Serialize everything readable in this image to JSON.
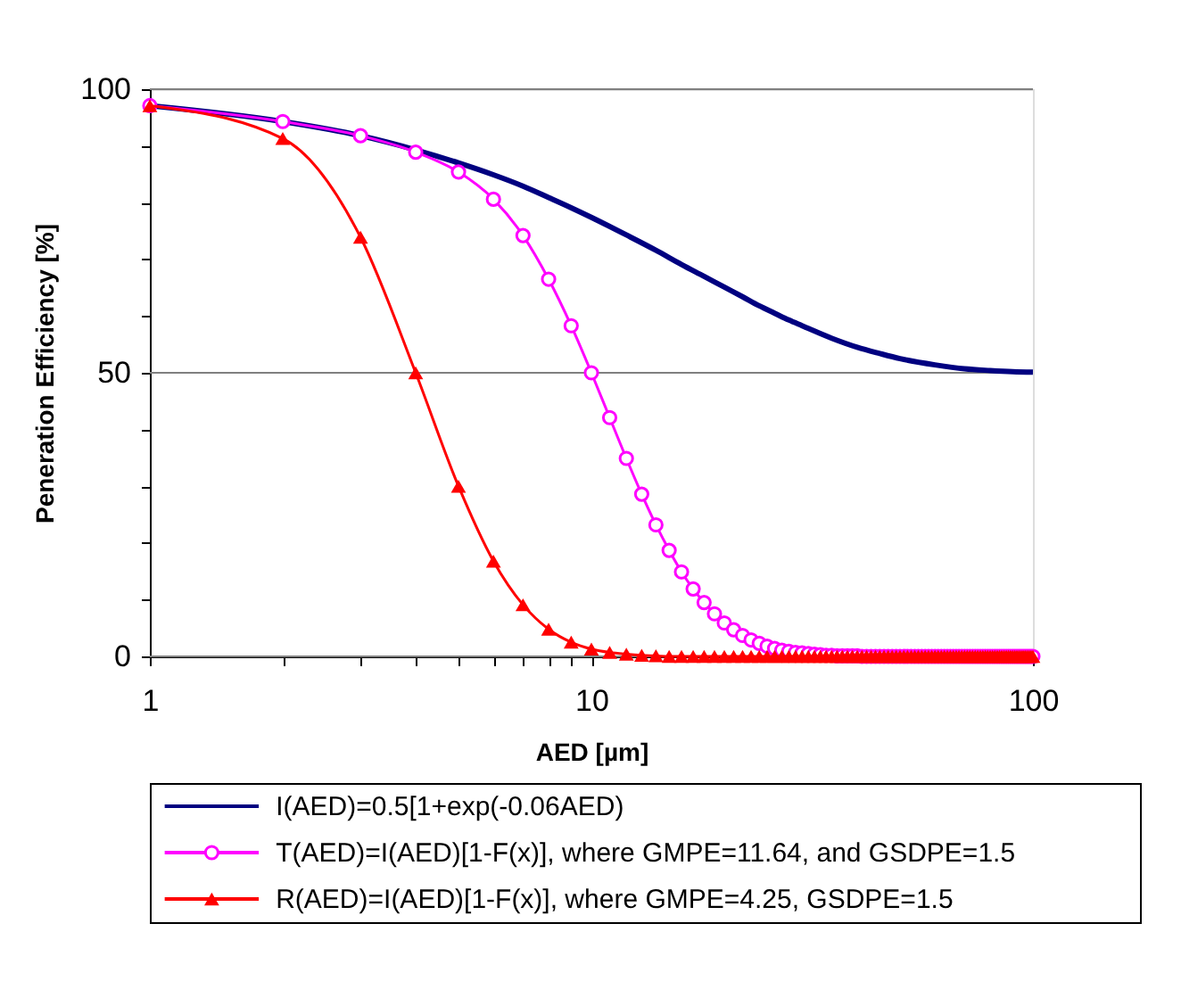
{
  "chart_data": {
    "type": "line",
    "xlabel": "AED [µm]",
    "ylabel": "Peneration Efficiency [%]",
    "log": "x",
    "grid": "y",
    "legend": "bottom",
    "xlim": [
      1,
      100
    ],
    "xticks": [
      1,
      {
        "value": 2,
        "label": null
      },
      {
        "value": 3,
        "label": null
      },
      {
        "value": 4,
        "label": null
      },
      {
        "value": 5,
        "label": null
      },
      {
        "value": 6,
        "label": null
      },
      {
        "value": 7,
        "label": null
      },
      {
        "value": 8,
        "label": null
      },
      {
        "value": 9,
        "label": null
      },
      10,
      100
    ],
    "ylim": [
      0,
      100
    ],
    "yticks": [
      0,
      {
        "value": 10,
        "label": null
      },
      {
        "value": 20,
        "label": null
      },
      {
        "value": 30,
        "label": null
      },
      {
        "value": 40,
        "label": null
      },
      50,
      {
        "value": 60,
        "label": null
      },
      {
        "value": 70,
        "label": null
      },
      {
        "value": 80,
        "label": null
      },
      {
        "value": 90,
        "label": null
      },
      100
    ],
    "x": [
      1,
      2,
      3,
      4,
      5,
      6,
      7,
      8,
      9,
      10,
      11,
      12,
      13,
      14,
      15,
      16,
      17,
      18,
      19,
      20,
      21,
      22,
      23,
      24,
      25,
      26,
      27,
      28,
      29,
      30,
      31,
      32,
      33,
      34,
      35,
      36,
      37,
      38,
      39,
      40,
      41,
      42,
      43,
      44,
      45,
      46,
      47,
      48,
      49,
      50,
      51,
      52,
      53,
      54,
      55,
      56,
      57,
      58,
      59,
      60,
      61,
      62,
      63,
      64,
      65,
      66,
      67,
      68,
      69,
      70,
      71,
      72,
      73,
      74,
      75,
      76,
      77,
      78,
      79,
      80,
      81,
      82,
      83,
      84,
      85,
      86,
      87,
      88,
      89,
      90,
      91,
      92,
      93,
      94,
      95,
      96,
      97,
      98,
      99,
      100
    ],
    "series": [
      {
        "name": "I(AED)=0.5[1+exp(-0.06AED)",
        "color": "#000080",
        "marker": "none",
        "x": [
          1,
          2,
          3,
          4,
          5,
          6,
          7,
          8,
          9,
          10,
          12,
          14,
          16,
          18,
          20,
          22,
          24,
          26,
          28,
          30,
          35,
          40,
          45,
          50,
          60,
          70,
          80,
          90,
          100
        ],
        "values": [
          97.1,
          94.3,
          91.8,
          89.3,
          87.0,
          84.9,
          82.9,
          80.9,
          79.1,
          77.4,
          74.3,
          71.6,
          69.1,
          67.0,
          65.1,
          63.4,
          61.8,
          60.5,
          59.3,
          58.3,
          56.1,
          54.5,
          53.4,
          52.5,
          51.4,
          50.7,
          50.4,
          50.2,
          50.1
        ]
      },
      {
        "name": "T(AED)=I(AED)[1-F(x)], where GMPE=11.64, and GSDPE=1.5",
        "color": "#ff00ff",
        "marker": "circle",
        "values": [
          97.1,
          94.3,
          91.8,
          88.9,
          85.4,
          80.6,
          74.2,
          66.5,
          58.3,
          50.0,
          42.1,
          34.9,
          28.6,
          23.2,
          18.7,
          14.9,
          11.9,
          9.5,
          7.5,
          5.9,
          4.7,
          3.7,
          2.9,
          2.3,
          1.8,
          1.4,
          1.1,
          0.9,
          0.7,
          0.6,
          0.5,
          0.4,
          0.3,
          0.2,
          0.2,
          0.1,
          0.1,
          0.1,
          0.1,
          0.1,
          0,
          0,
          0,
          0,
          0,
          0,
          0,
          0,
          0,
          0,
          0,
          0,
          0,
          0,
          0,
          0,
          0,
          0,
          0,
          0,
          0,
          0,
          0,
          0,
          0,
          0,
          0,
          0,
          0,
          0,
          0,
          0,
          0,
          0,
          0,
          0,
          0,
          0,
          0,
          0,
          0,
          0,
          0,
          0,
          0,
          0,
          0,
          0,
          0,
          0,
          0,
          0,
          0,
          0,
          0,
          0,
          0,
          0,
          0,
          0
        ]
      },
      {
        "name": "R(AED)=I(AED)[1-F(x)], where GMPE=4.25, GSDPE=1.5",
        "color": "#ff0000",
        "marker": "triangle",
        "values": [
          97.1,
          91.3,
          73.9,
          50.0,
          30.0,
          16.8,
          9.1,
          4.8,
          2.5,
          1.3,
          0.7,
          0.4,
          0.2,
          0.1,
          0,
          0,
          0,
          0,
          0,
          0,
          0,
          0,
          0,
          0,
          0,
          0,
          0,
          0,
          0,
          0,
          0,
          0,
          0,
          0,
          0,
          0,
          0,
          0,
          0,
          0,
          0,
          0,
          0,
          0,
          0,
          0,
          0,
          0,
          0,
          0,
          0,
          0,
          0,
          0,
          0,
          0,
          0,
          0,
          0,
          0,
          0,
          0,
          0,
          0,
          0,
          0,
          0,
          0,
          0,
          0,
          0,
          0,
          0,
          0,
          0,
          0,
          0,
          0,
          0,
          0,
          0,
          0,
          0,
          0,
          0,
          0,
          0,
          0,
          0,
          0,
          0,
          0,
          0,
          0,
          0,
          0,
          0,
          0,
          0,
          0
        ]
      }
    ]
  }
}
